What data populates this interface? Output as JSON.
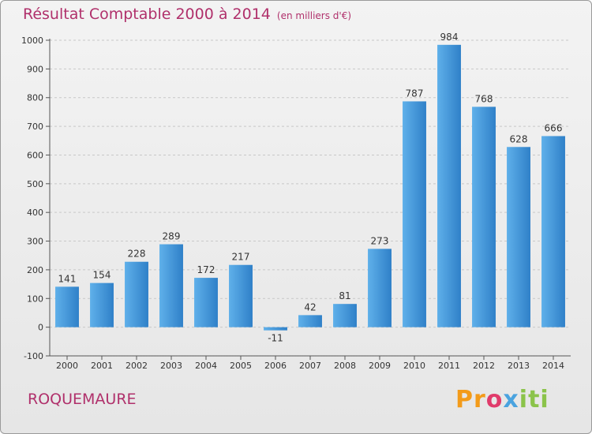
{
  "chart_data": {
    "type": "bar",
    "title": "Résultat Comptable 2000 à 2014",
    "subtitle": "(en milliers d'€)",
    "categories": [
      "2000",
      "2001",
      "2002",
      "2003",
      "2004",
      "2005",
      "2006",
      "2007",
      "2008",
      "2009",
      "2010",
      "2011",
      "2012",
      "2013",
      "2014"
    ],
    "values": [
      141,
      154,
      228,
      289,
      172,
      217,
      -11,
      42,
      81,
      273,
      787,
      984,
      768,
      628,
      666
    ],
    "value_labels": [
      "141",
      "154",
      "228",
      "289",
      "172",
      "217",
      "-11",
      "42",
      "81",
      "273",
      "787",
      "984",
      "768",
      "628",
      "666"
    ],
    "yticks": [
      -100,
      0,
      100,
      200,
      300,
      400,
      500,
      600,
      700,
      800,
      900,
      1000
    ],
    "ylim": [
      -100,
      1000
    ],
    "grid": "horizontal dashed",
    "bar_color": "#3a8fd6"
  },
  "commune": "ROQUEMAURE",
  "logo": {
    "text": "Proxiti"
  }
}
